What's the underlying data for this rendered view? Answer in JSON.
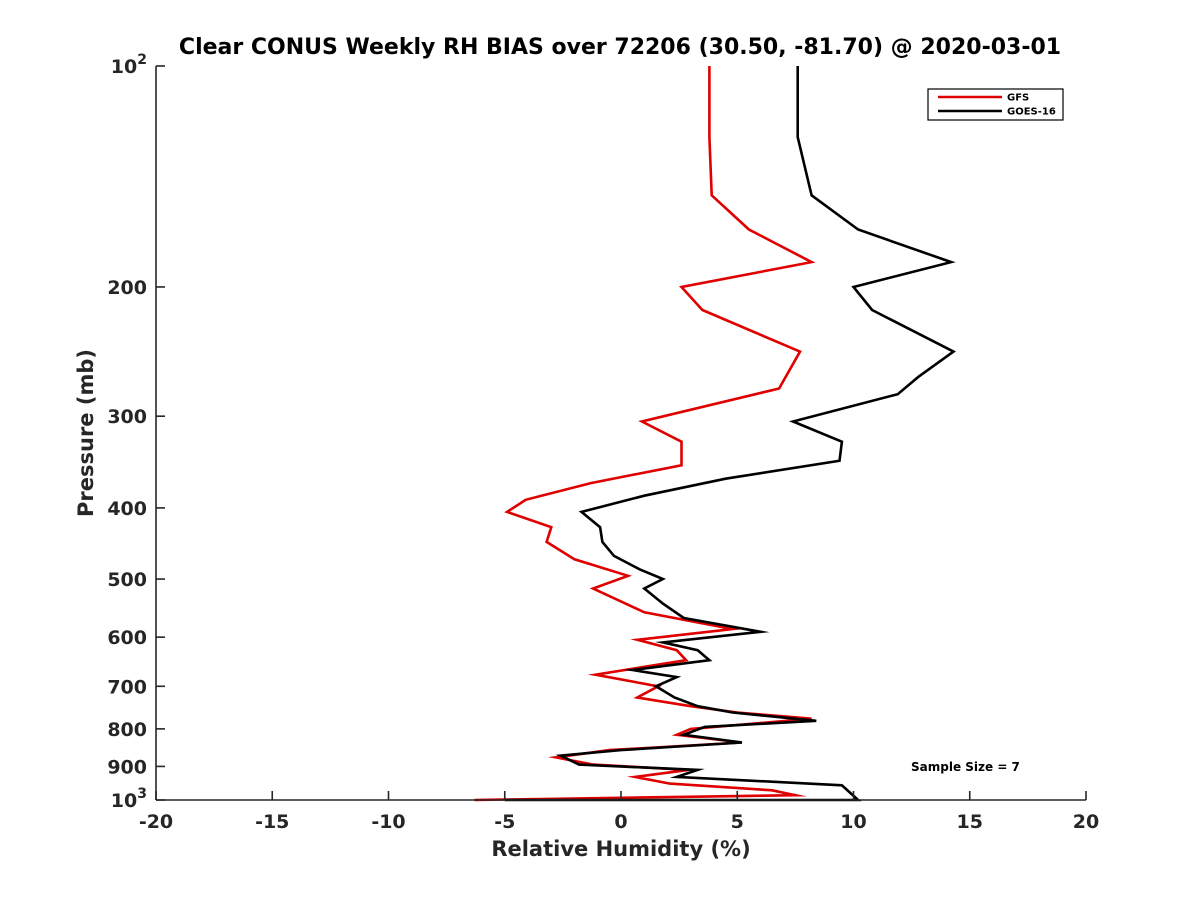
{
  "chart_data": {
    "type": "line",
    "title": "Clear CONUS Weekly RH BIAS over 72206 (30.50, -81.70) @ 2020-03-01",
    "xlabel": "Relative Humidity (%)",
    "ylabel": "Pressure (mb)",
    "xlim": [
      -20,
      20
    ],
    "ylim": [
      1000,
      100
    ],
    "yscale": "log",
    "y_reversed": true,
    "grid": false,
    "legend_position": "top-right",
    "x_ticks": [
      "-20",
      "-15",
      "-10",
      "-5",
      "0",
      "5",
      "10",
      "15",
      "20"
    ],
    "y_ticks": [
      {
        "value": 100,
        "base": "10",
        "exp": "2"
      },
      {
        "value": 200,
        "label": "200"
      },
      {
        "value": 300,
        "label": "300"
      },
      {
        "value": 400,
        "label": "400"
      },
      {
        "value": 500,
        "label": "500"
      },
      {
        "value": 600,
        "label": "600"
      },
      {
        "value": 700,
        "label": "700"
      },
      {
        "value": 800,
        "label": "800"
      },
      {
        "value": 900,
        "label": "900"
      },
      {
        "value": 1000,
        "base": "10",
        "exp": "3"
      }
    ],
    "annotation": "Sample Size = 7",
    "series": [
      {
        "name": "GFS",
        "color": "#e00000",
        "points": [
          [
            3.8,
            100
          ],
          [
            3.8,
            125
          ],
          [
            3.9,
            150
          ],
          [
            5.5,
            167
          ],
          [
            8.2,
            185
          ],
          [
            2.6,
            200
          ],
          [
            3.5,
            215
          ],
          [
            7.7,
            245
          ],
          [
            6.8,
            275
          ],
          [
            0.9,
            305
          ],
          [
            2.6,
            325
          ],
          [
            2.6,
            350
          ],
          [
            -1.3,
            370
          ],
          [
            -4.1,
            390
          ],
          [
            -4.9,
            405
          ],
          [
            -3.0,
            425
          ],
          [
            -3.2,
            445
          ],
          [
            -2.0,
            470
          ],
          [
            0.3,
            495
          ],
          [
            -1.2,
            515
          ],
          [
            1.0,
            555
          ],
          [
            4.8,
            585
          ],
          [
            0.7,
            605
          ],
          [
            2.4,
            625
          ],
          [
            2.8,
            645
          ],
          [
            -1.1,
            675
          ],
          [
            1.6,
            700
          ],
          [
            0.7,
            725
          ],
          [
            3.0,
            745
          ],
          [
            5.0,
            760
          ],
          [
            8.2,
            775
          ],
          [
            3.0,
            800
          ],
          [
            2.4,
            815
          ],
          [
            5.2,
            835
          ],
          [
            -0.5,
            855
          ],
          [
            -2.8,
            875
          ],
          [
            -1.2,
            895
          ],
          [
            2.9,
            910
          ],
          [
            0.6,
            930
          ],
          [
            2.1,
            950
          ],
          [
            6.5,
            970
          ],
          [
            7.5,
            985
          ],
          [
            -6.3,
            1000
          ]
        ]
      },
      {
        "name": "GOES-16",
        "color": "#000000",
        "points": [
          [
            7.6,
            100
          ],
          [
            7.6,
            125
          ],
          [
            8.2,
            150
          ],
          [
            10.2,
            167
          ],
          [
            14.2,
            185
          ],
          [
            10.0,
            200
          ],
          [
            10.8,
            215
          ],
          [
            14.3,
            245
          ],
          [
            12.8,
            265
          ],
          [
            11.9,
            280
          ],
          [
            7.4,
            305
          ],
          [
            9.5,
            325
          ],
          [
            9.4,
            345
          ],
          [
            4.5,
            365
          ],
          [
            1.0,
            385
          ],
          [
            -1.7,
            405
          ],
          [
            -0.9,
            425
          ],
          [
            -0.8,
            445
          ],
          [
            -0.3,
            465
          ],
          [
            0.8,
            485
          ],
          [
            1.8,
            500
          ],
          [
            1.0,
            515
          ],
          [
            1.8,
            540
          ],
          [
            2.7,
            565
          ],
          [
            6.0,
            590
          ],
          [
            1.8,
            610
          ],
          [
            3.3,
            625
          ],
          [
            3.8,
            645
          ],
          [
            0.5,
            665
          ],
          [
            2.4,
            680
          ],
          [
            1.5,
            700
          ],
          [
            2.3,
            725
          ],
          [
            3.3,
            745
          ],
          [
            4.8,
            760
          ],
          [
            8.4,
            780
          ],
          [
            3.6,
            795
          ],
          [
            2.7,
            815
          ],
          [
            5.2,
            835
          ],
          [
            0.0,
            855
          ],
          [
            -2.6,
            870
          ],
          [
            -1.8,
            895
          ],
          [
            3.3,
            910
          ],
          [
            2.4,
            930
          ],
          [
            9.5,
            955
          ],
          [
            10.2,
            1000
          ],
          [
            -5.0,
            1000
          ]
        ]
      }
    ]
  }
}
